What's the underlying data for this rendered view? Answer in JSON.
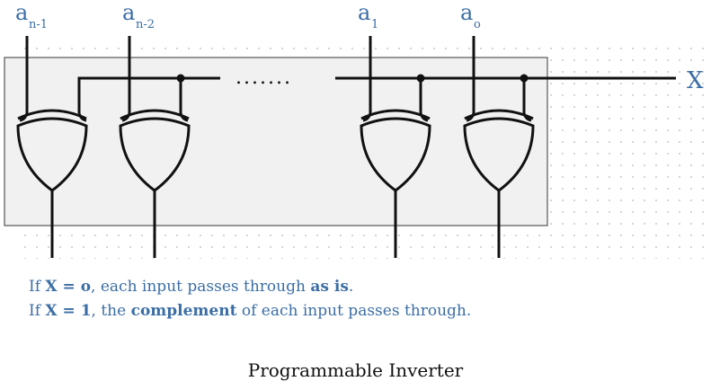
{
  "inputs": [
    {
      "base": "a",
      "sub": "n-1"
    },
    {
      "base": "a",
      "sub": "n-2"
    },
    {
      "base": "a",
      "sub": "1"
    },
    {
      "base": "a",
      "sub": "o"
    }
  ],
  "control_label": "X",
  "ellipsis": ".......",
  "notes": {
    "line1": {
      "p1": "If ",
      "b1": "X = o",
      "p2": ", each input passes through ",
      "b2": "as is",
      "p3": "."
    },
    "line2": {
      "p1": "If ",
      "b1": "X = 1",
      "p2": ", the ",
      "b2": "complement",
      "p3": " of each input passes through."
    }
  },
  "caption": "Programmable Inverter",
  "colors": {
    "text_blue": "#3b6ea5",
    "box_fill": "#f1f1f1",
    "wire": "#111111",
    "grid_dot": "#c8c8c8"
  }
}
